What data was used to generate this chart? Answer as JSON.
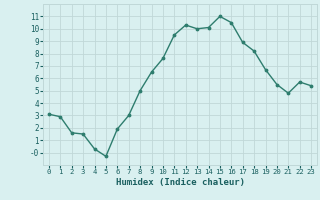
{
  "x": [
    0,
    1,
    2,
    3,
    4,
    5,
    6,
    7,
    8,
    9,
    10,
    11,
    12,
    13,
    14,
    15,
    16,
    17,
    18,
    19,
    20,
    21,
    22,
    23
  ],
  "y": [
    3.1,
    2.9,
    1.6,
    1.5,
    0.3,
    -0.3,
    1.9,
    3.0,
    5.0,
    6.5,
    7.6,
    9.5,
    10.3,
    10.0,
    10.1,
    11.0,
    10.5,
    8.9,
    8.2,
    6.7,
    5.5,
    4.8,
    5.7,
    5.4
  ],
  "xlabel": "Humidex (Indice chaleur)",
  "xlim": [
    -0.5,
    23.5
  ],
  "ylim": [
    -1,
    12
  ],
  "yticks": [
    0,
    1,
    2,
    3,
    4,
    5,
    6,
    7,
    8,
    9,
    10,
    11
  ],
  "ytick_labels": [
    "-0",
    "1",
    "2",
    "3",
    "4",
    "5",
    "6",
    "7",
    "8",
    "9",
    "10",
    "11"
  ],
  "xticks": [
    0,
    1,
    2,
    3,
    4,
    5,
    6,
    7,
    8,
    9,
    10,
    11,
    12,
    13,
    14,
    15,
    16,
    17,
    18,
    19,
    20,
    21,
    22,
    23
  ],
  "line_color": "#2e7d6e",
  "marker_color": "#2e7d6e",
  "bg_color": "#d9f0f0",
  "grid_color": "#c0d8d8",
  "axis_bg": "#d9f0f0",
  "label_color": "#1a6060",
  "tick_color": "#1a6060",
  "font_family": "monospace"
}
